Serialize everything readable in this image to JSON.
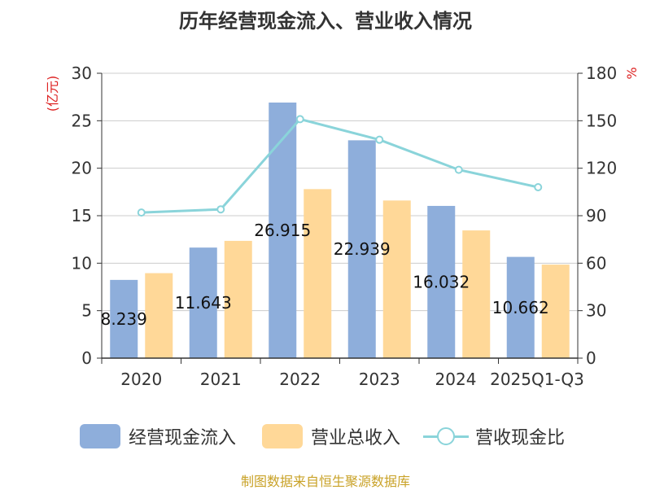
{
  "chart_data": {
    "type": "bar",
    "title": "历年经营现金流入、营业收入情况",
    "categories": [
      "2020",
      "2021",
      "2022",
      "2023",
      "2024",
      "2025Q1-Q3"
    ],
    "series": [
      {
        "name": "经营现金流入",
        "kind": "bar",
        "axis": "left",
        "color": "#8eaedb",
        "values": [
          8.239,
          11.643,
          26.915,
          22.939,
          16.032,
          10.662
        ],
        "labels": [
          "8.239",
          "11.643",
          "26.915",
          "22.939",
          "16.032",
          "10.662"
        ]
      },
      {
        "name": "营业总收入",
        "kind": "bar",
        "axis": "left",
        "color": "#ffd898",
        "values": [
          8.95,
          12.35,
          17.8,
          16.6,
          13.45,
          9.85
        ]
      },
      {
        "name": "营收现金比",
        "kind": "line",
        "axis": "right",
        "color": "#8ad4da",
        "values": [
          92,
          94,
          151,
          138,
          119,
          108
        ]
      }
    ],
    "left_axis": {
      "label": "(亿元)",
      "ticks": [
        "0",
        "5",
        "10",
        "15",
        "20",
        "25",
        "30"
      ],
      "ylim": [
        0,
        30
      ]
    },
    "right_axis": {
      "label": "%",
      "ticks": [
        "0",
        "30",
        "60",
        "90",
        "120",
        "150",
        "180"
      ],
      "ylim": [
        0,
        180
      ]
    },
    "grid": true,
    "legend_position": "bottom",
    "source": "制图数据来自恒生聚源数据库"
  }
}
